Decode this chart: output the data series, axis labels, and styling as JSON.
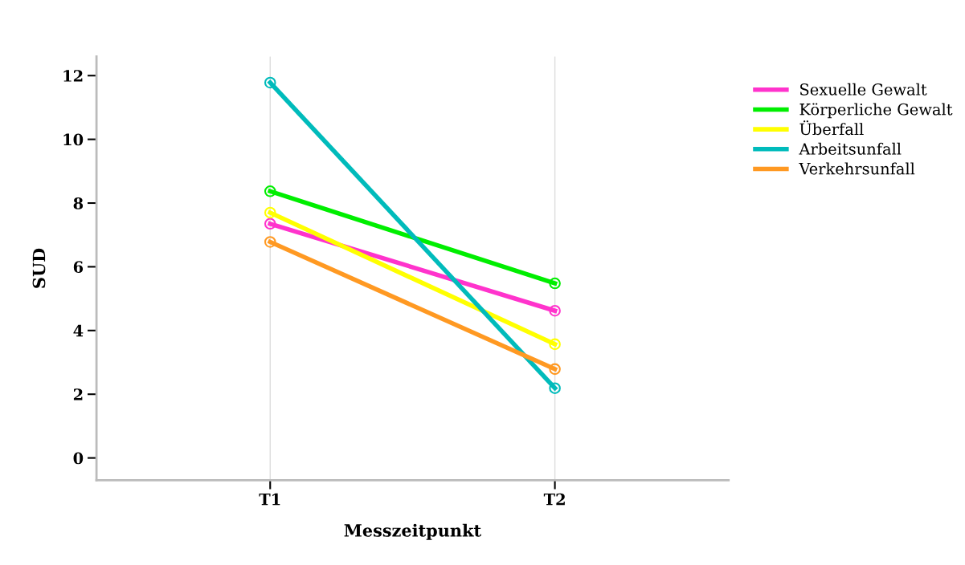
{
  "chart_data": {
    "type": "line",
    "xlabel": "Messzeitpunkt",
    "ylabel": "SUD",
    "categories": [
      "T1",
      "T2"
    ],
    "series": [
      {
        "name": "Sexuelle Gewalt",
        "color": "#ff33cc",
        "values": [
          7.35,
          4.62
        ]
      },
      {
        "name": "Körperliche Gewalt",
        "color": "#00ee00",
        "values": [
          8.37,
          5.48
        ]
      },
      {
        "name": "Überfall",
        "color": "#ffff00",
        "values": [
          7.7,
          3.57
        ]
      },
      {
        "name": "Arbeitsunfall",
        "color": "#00bbbb",
        "values": [
          11.78,
          2.19
        ]
      },
      {
        "name": "Verkehrsunfall",
        "color": "#ff9922",
        "values": [
          6.78,
          2.79
        ]
      }
    ],
    "ylim": [
      -0.7,
      12.6
    ],
    "yticks": [
      0,
      2,
      4,
      6,
      8,
      10,
      12
    ],
    "grid": "x",
    "legend": "top right",
    "marker": "circle",
    "line_style": "solid"
  }
}
